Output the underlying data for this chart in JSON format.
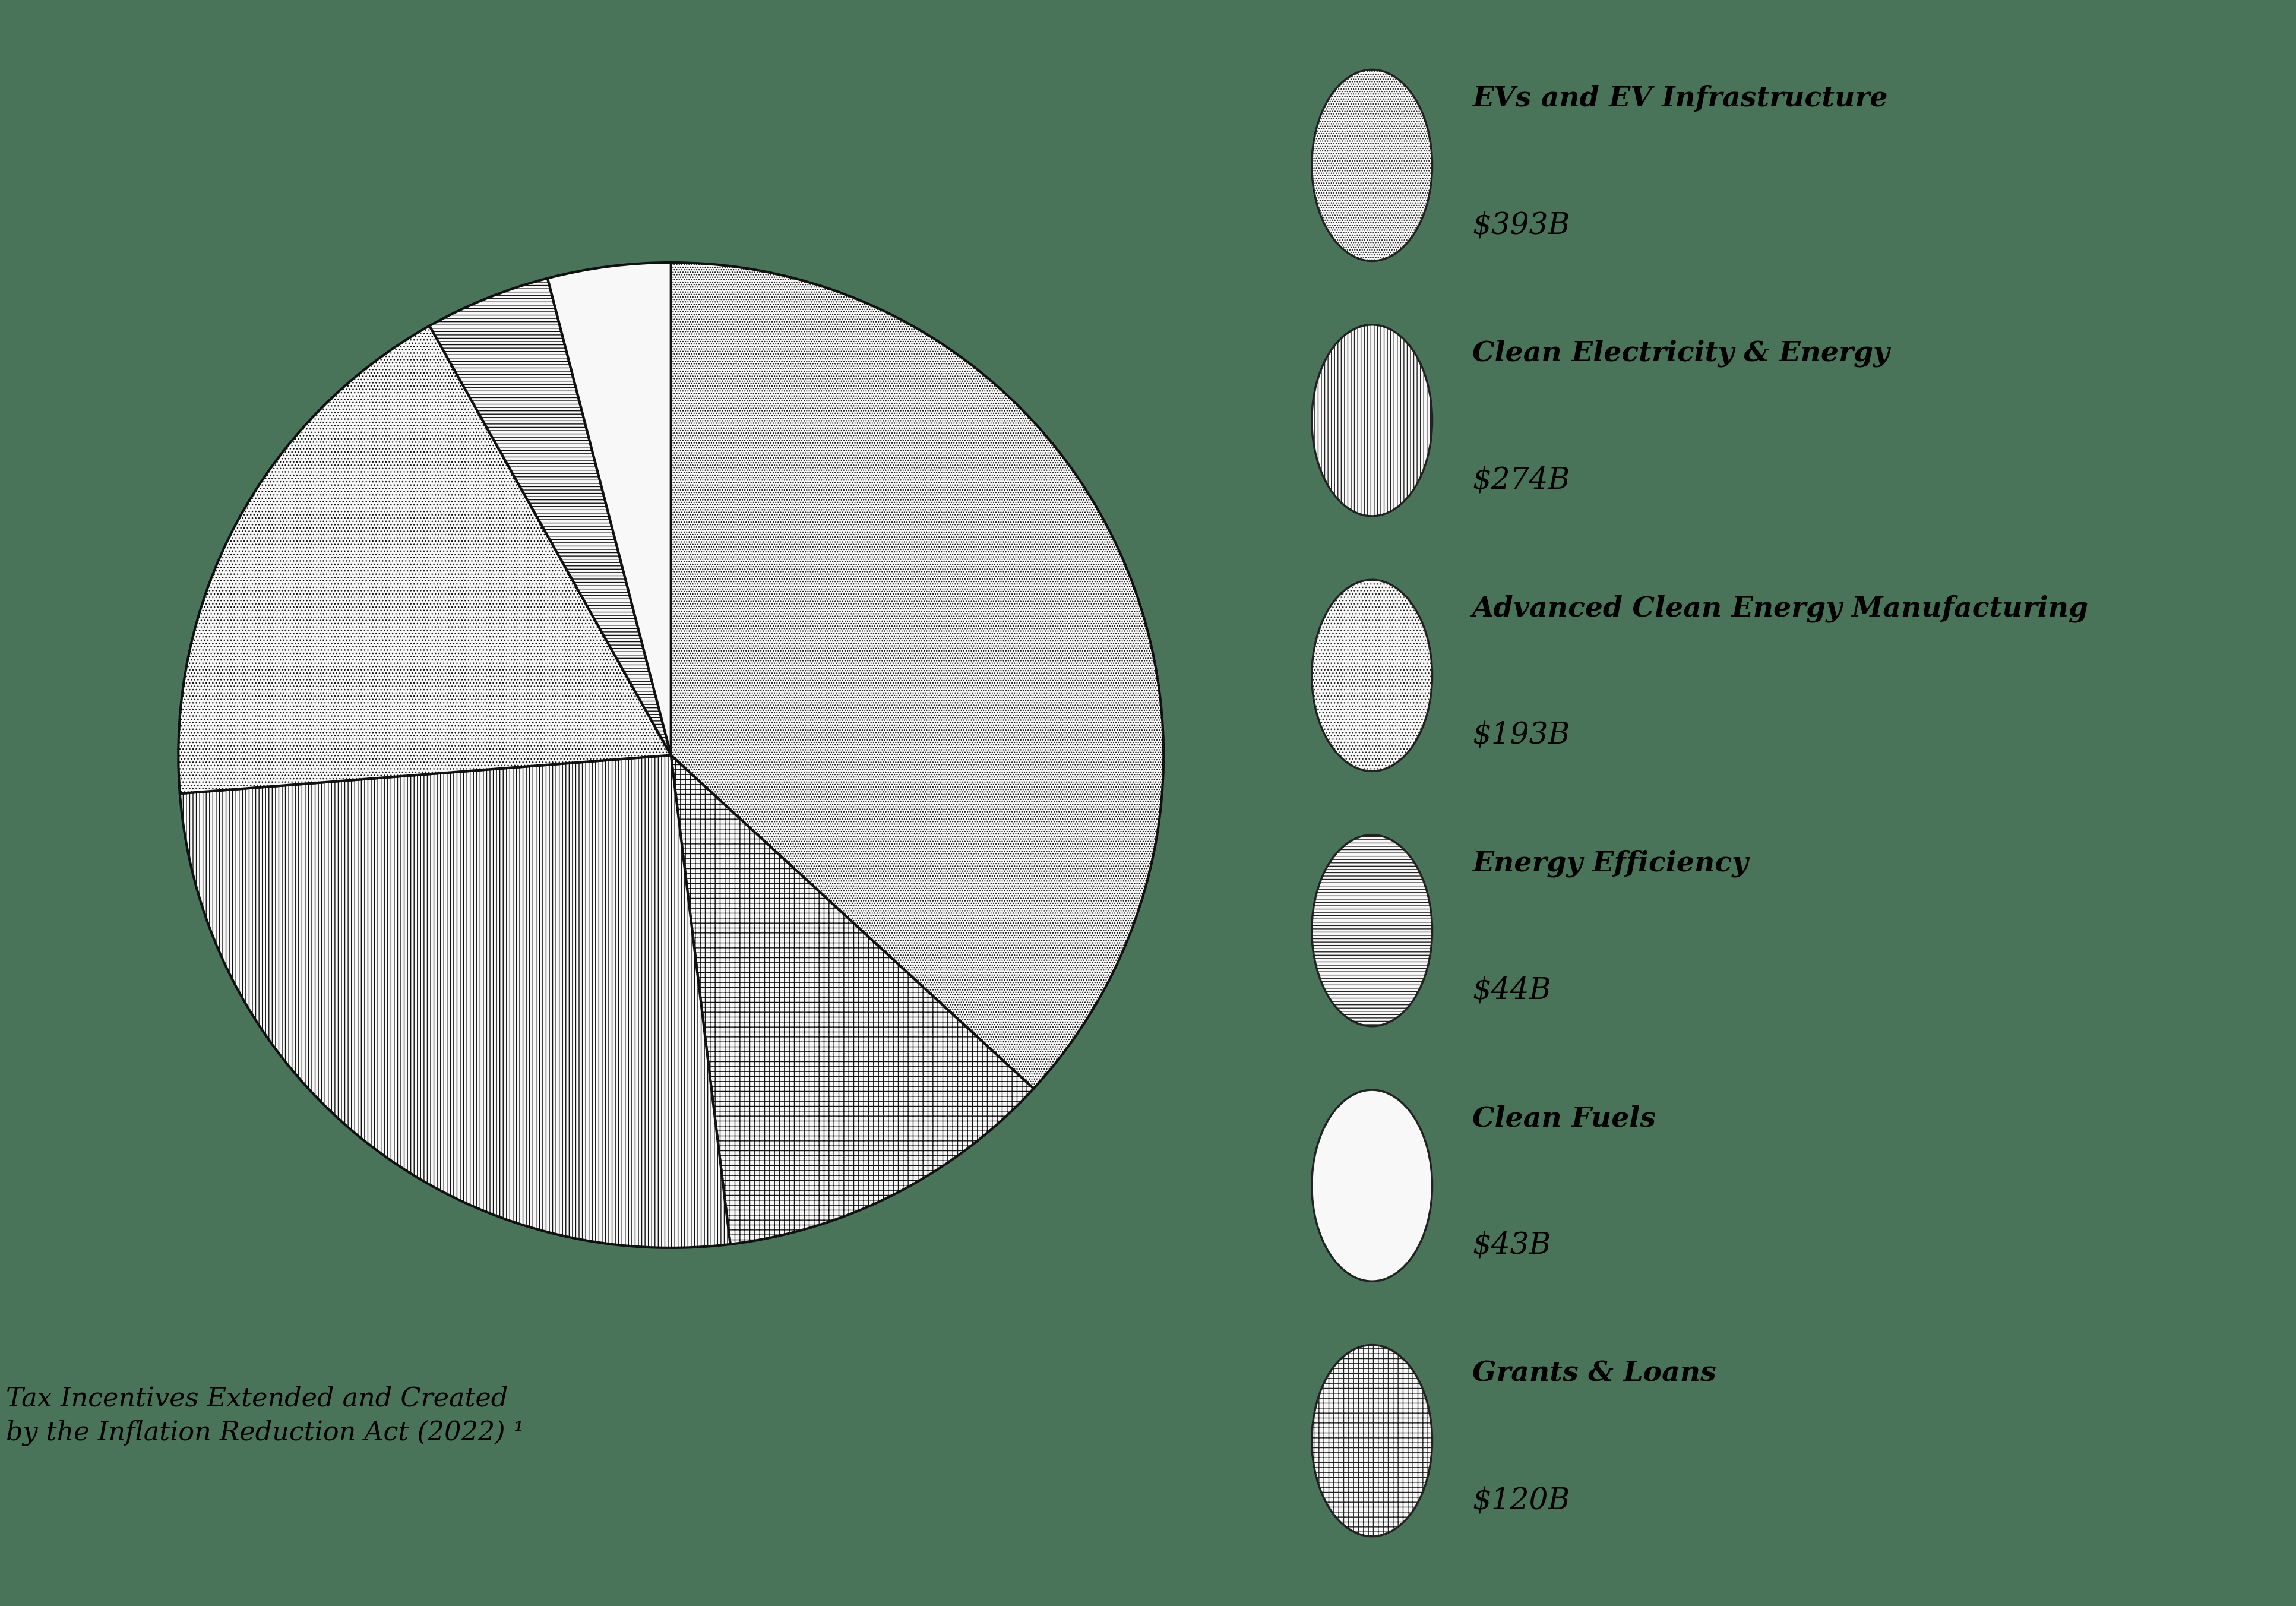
{
  "title": "Tax Incentives Extended and Created\nby the Inflation Reduction Act (2022) ¹",
  "segments": [
    {
      "label": "EVs and EV Infrastructure",
      "value_label": "$393B",
      "value": 393,
      "hatch": "....",
      "facecolor": "#f8f8f8"
    },
    {
      "label": "Grants & Loans",
      "value_label": "$120B",
      "value": 120,
      "hatch": "++",
      "facecolor": "#f8f8f8"
    },
    {
      "label": "Clean Electricity & Energy",
      "value_label": "$274B",
      "value": 274,
      "hatch": "|||",
      "facecolor": "#f8f8f8"
    },
    {
      "label": "Advanced Clean Energy Manufacturing",
      "value_label": "$193B",
      "value": 193,
      "hatch": "...",
      "facecolor": "#f8f8f8"
    },
    {
      "label": "Energy Efficiency",
      "value_label": "$44B",
      "value": 44,
      "hatch": "---",
      "facecolor": "#f8f8f8"
    },
    {
      "label": "Clean Fuels",
      "value_label": "$43B",
      "value": 43,
      "hatch": "~~~",
      "facecolor": "#f8f8f8"
    }
  ],
  "background_color": "#4a7459",
  "pie_edge_color": "#111111",
  "pie_linewidth": 3.0,
  "legend_items": [
    {
      "label": "EVs and EV Infrastructure",
      "value_label": "$393B",
      "hatch": "....",
      "facecolor": "#f8f8f8"
    },
    {
      "label": "Clean Electricity & Energy",
      "value_label": "$274B",
      "hatch": "|||",
      "facecolor": "#f8f8f8"
    },
    {
      "label": "Advanced Clean Energy Manufacturing",
      "value_label": "$193B",
      "hatch": "...",
      "facecolor": "#f8f8f8"
    },
    {
      "label": "Energy Efficiency",
      "value_label": "$44B",
      "hatch": "---",
      "facecolor": "#f8f8f8"
    },
    {
      "label": "Clean Fuels",
      "value_label": "$43B",
      "hatch": "~~~",
      "facecolor": "#f8f8f8"
    },
    {
      "label": "Grants & Loans",
      "value_label": "$120B",
      "hatch": "++",
      "facecolor": "#f8f8f8"
    }
  ],
  "title_fontsize": 32,
  "legend_label_fontsize": 34,
  "legend_value_fontsize": 36
}
